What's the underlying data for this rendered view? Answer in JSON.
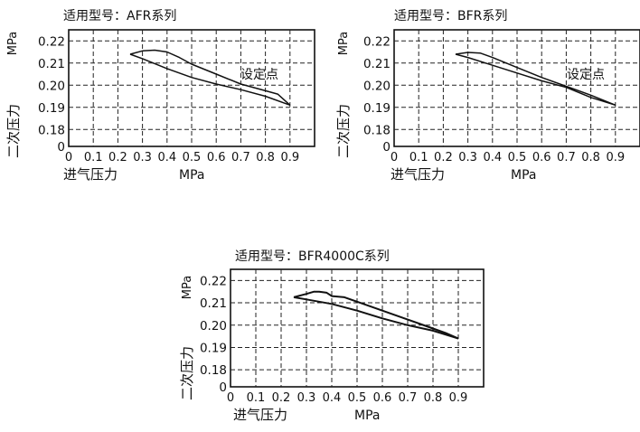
{
  "chart_data": [
    {
      "type": "line",
      "title": "适用型号：AFR系列",
      "xlabel_cn": "进气压力",
      "xlabel_unit": "MPa",
      "ylabel_cn": "二次压力",
      "ylabel_unit": "MPa",
      "annotation": "设定点",
      "xlim": [
        0,
        1.0
      ],
      "ylim_labels": [
        "0.22",
        "0.21",
        "0.20",
        "0.19",
        "0.18",
        "0"
      ],
      "x_ticks": [
        "0",
        "0.1",
        "0.2",
        "0.3",
        "0.4",
        "0.5",
        "0.6",
        "0.7",
        "0.8",
        "0.9"
      ],
      "grid": true,
      "series": [
        {
          "x": [
            0.25,
            0.3,
            0.35,
            0.4,
            0.45,
            0.5,
            0.6,
            0.7,
            0.8,
            0.85,
            0.9
          ],
          "y": [
            0.214,
            0.2155,
            0.2158,
            0.215,
            0.2125,
            0.2095,
            0.205,
            0.2005,
            0.1975,
            0.196,
            0.191
          ]
        },
        {
          "x": [
            0.9,
            0.8,
            0.7,
            0.6,
            0.5,
            0.4,
            0.3,
            0.25
          ],
          "y": [
            0.191,
            0.195,
            0.198,
            0.2005,
            0.2035,
            0.2075,
            0.212,
            0.214
          ]
        }
      ]
    },
    {
      "type": "line",
      "title": "适用型号：BFR系列",
      "xlabel_cn": "进气压力",
      "xlabel_unit": "MPa",
      "ylabel_cn": "二次压力",
      "ylabel_unit": "MPa",
      "annotation": "设定点",
      "xlim": [
        0,
        1.0
      ],
      "ylim_labels": [
        "0.22",
        "0.21",
        "0.20",
        "0.19",
        "0.18",
        "0"
      ],
      "x_ticks": [
        "0",
        "0.1",
        "0.2",
        "0.3",
        "0.4",
        "0.5",
        "0.6",
        "0.7",
        "0.8",
        "0.9"
      ],
      "grid": true,
      "series": [
        {
          "x": [
            0.25,
            0.3,
            0.35,
            0.4,
            0.5,
            0.6,
            0.7,
            0.8,
            0.9
          ],
          "y": [
            0.214,
            0.2148,
            0.2145,
            0.2125,
            0.208,
            0.2035,
            0.1995,
            0.1955,
            0.191
          ]
        },
        {
          "x": [
            0.9,
            0.8,
            0.7,
            0.6,
            0.5,
            0.4,
            0.3,
            0.25
          ],
          "y": [
            0.191,
            0.1945,
            0.199,
            0.202,
            0.2055,
            0.209,
            0.2125,
            0.214
          ]
        }
      ]
    },
    {
      "type": "line",
      "title": "适用型号：BFR4000C系列",
      "xlabel_cn": "进气压力",
      "xlabel_unit": "MPa",
      "ylabel_cn": "二次压力",
      "ylabel_unit": "MPa",
      "annotation": "",
      "xlim": [
        0,
        1.0
      ],
      "ylim_labels": [
        "0.22",
        "0.21",
        "0.20",
        "0.19",
        "0.18",
        "0"
      ],
      "x_ticks": [
        "0",
        "0.1",
        "0.2",
        "0.3",
        "0.4",
        "0.5",
        "0.6",
        "0.7",
        "0.8",
        "0.9"
      ],
      "grid": true,
      "series": [
        {
          "x": [
            0.25,
            0.3,
            0.33,
            0.35,
            0.38,
            0.4,
            0.45,
            0.5,
            0.6,
            0.7,
            0.75,
            0.8,
            0.85,
            0.9
          ],
          "y": [
            0.2125,
            0.214,
            0.215,
            0.215,
            0.2145,
            0.213,
            0.2125,
            0.2105,
            0.2065,
            0.2025,
            0.2005,
            0.1985,
            0.1965,
            0.194
          ]
        },
        {
          "x": [
            0.9,
            0.8,
            0.7,
            0.6,
            0.5,
            0.4,
            0.3,
            0.25
          ],
          "y": [
            0.194,
            0.1975,
            0.2,
            0.203,
            0.2065,
            0.2095,
            0.2115,
            0.2125
          ]
        }
      ]
    }
  ]
}
